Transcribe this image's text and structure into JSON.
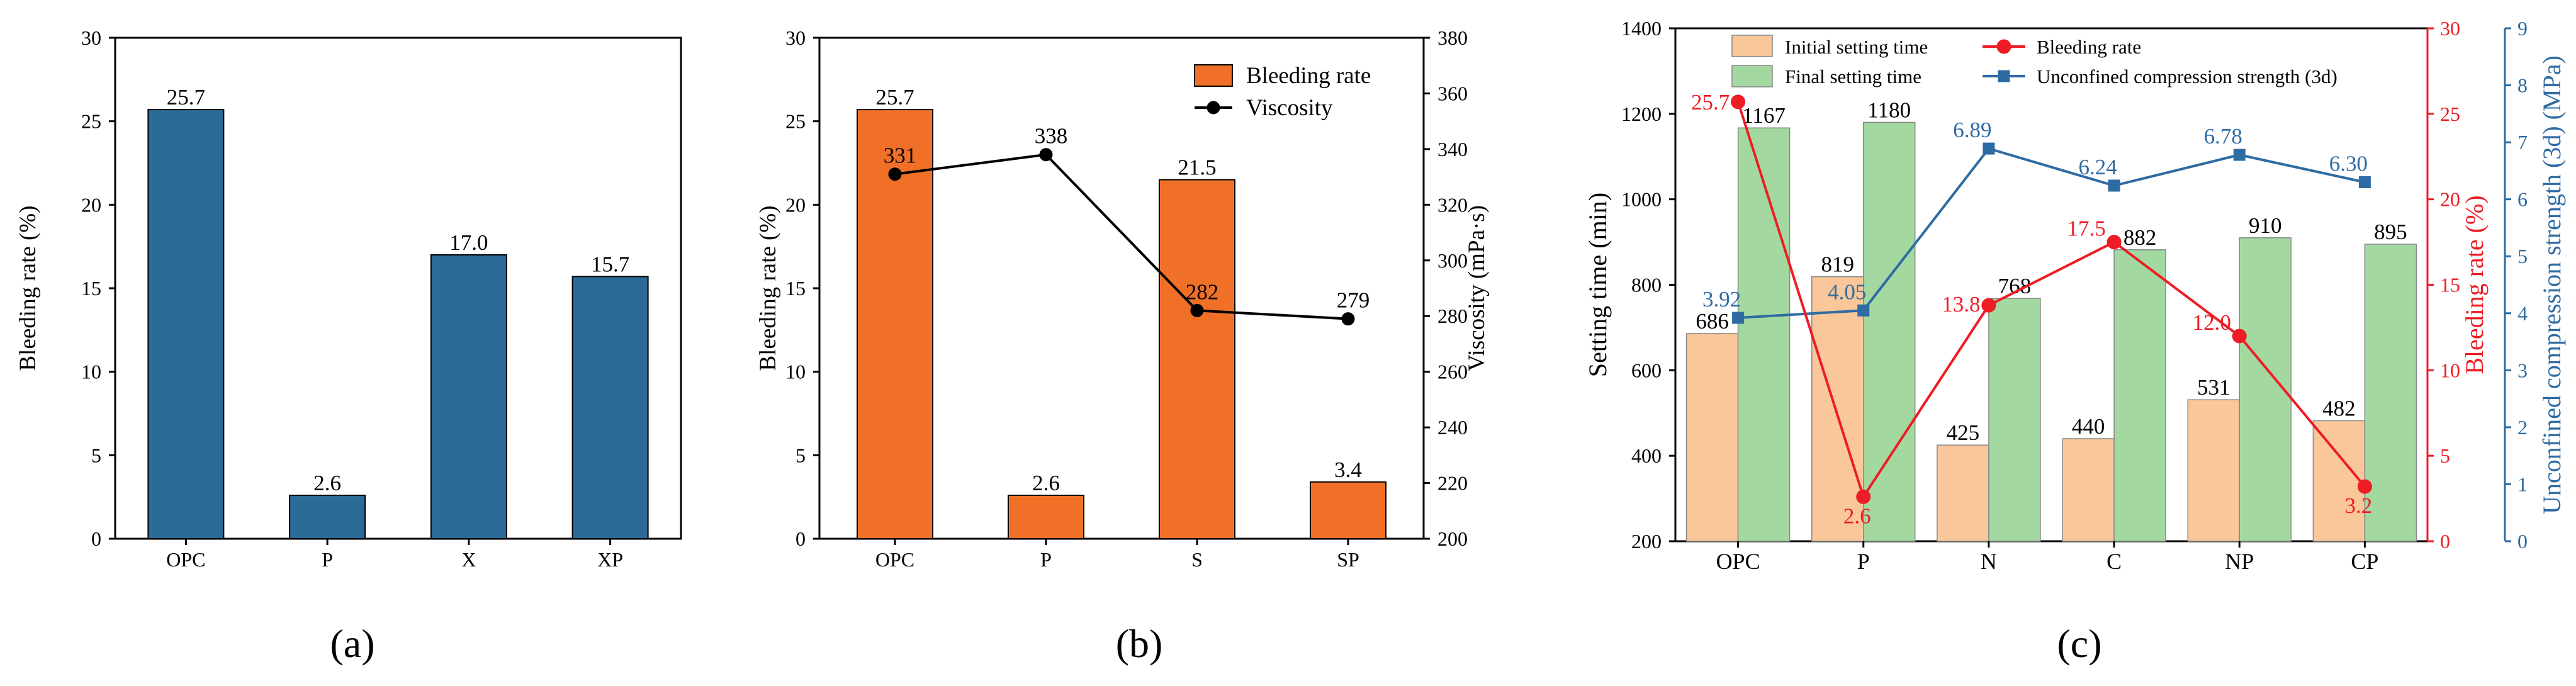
{
  "colors": {
    "blue_bar": "#2c6a98",
    "orange_bar": "#f07028",
    "initial_setting": "#f9c79a",
    "final_setting": "#a3d9a0",
    "bleeding_line": "#ee1c24",
    "strength_line": "#2e6ba3",
    "viscosity_line": "#000000"
  },
  "chart_data": [
    {
      "panel": "(a)",
      "type": "bar",
      "categories": [
        "OPC",
        "P",
        "X",
        "XP"
      ],
      "values": [
        25.7,
        2.6,
        17.0,
        15.7
      ],
      "value_labels": [
        "25.7",
        "2.6",
        "17.0",
        "15.7"
      ],
      "ylabel": "Bleeding rate (%)",
      "xlabel": "",
      "ylim": [
        0,
        30
      ],
      "yticks": [
        0,
        5,
        10,
        15,
        20,
        25,
        30
      ]
    },
    {
      "panel": "(b)",
      "type": "bar+line",
      "categories": [
        "OPC",
        "P",
        "S",
        "SP"
      ],
      "series": [
        {
          "name": "Bleeding rate",
          "type": "bar",
          "axis": "left",
          "values": [
            25.7,
            2.6,
            21.5,
            3.4
          ],
          "value_labels": [
            "25.7",
            "2.6",
            "21.5",
            "3.4"
          ]
        },
        {
          "name": "Viscosity",
          "type": "line",
          "axis": "right",
          "values": [
            331,
            338,
            282,
            279
          ],
          "value_labels": [
            "331",
            "338",
            "282",
            "279"
          ]
        }
      ],
      "ylabel": "Bleeding rate (%)",
      "ylim": [
        0,
        30
      ],
      "yticks": [
        0,
        5,
        10,
        15,
        20,
        25,
        30
      ],
      "y2label": "Viscosity (mPa·s)",
      "y2lim": [
        200,
        380
      ],
      "y2ticks": [
        200,
        220,
        240,
        260,
        280,
        300,
        320,
        340,
        360,
        380
      ],
      "legend": "top-right"
    },
    {
      "panel": "(c)",
      "type": "bar+line",
      "categories": [
        "OPC",
        "P",
        "N",
        "C",
        "NP",
        "CP"
      ],
      "series": [
        {
          "name": "Initial setting time",
          "type": "bar",
          "axis": "left",
          "values": [
            686,
            819,
            425,
            440,
            531,
            482
          ],
          "value_labels": [
            "686",
            "819",
            "425",
            "440",
            "531",
            "482"
          ]
        },
        {
          "name": "Final setting time",
          "type": "bar",
          "axis": "left",
          "values": [
            1167,
            1180,
            768,
            882,
            910,
            895
          ],
          "value_labels": [
            "1167",
            "1180",
            "768",
            "882",
            "910",
            "895"
          ]
        },
        {
          "name": "Bleeding rate",
          "type": "line",
          "axis": "right1",
          "values": [
            25.7,
            2.6,
            13.8,
            17.5,
            12.0,
            3.2
          ],
          "value_labels": [
            "25.7",
            "2.6",
            "13.8",
            "17.5",
            "12.0",
            "3.2"
          ]
        },
        {
          "name": "Unconfined compression strength (3d)",
          "type": "line",
          "axis": "right2",
          "values": [
            3.92,
            4.05,
            6.89,
            6.24,
            6.78,
            6.3
          ],
          "value_labels": [
            "3.92",
            "4.05",
            "6.89",
            "6.24",
            "6.78",
            "6.30"
          ]
        }
      ],
      "ylabel": "Setting time (min)",
      "ylim": [
        200,
        1400
      ],
      "yticks": [
        200,
        400,
        600,
        800,
        1000,
        1200,
        1400
      ],
      "y2label": "Bleeding rate (%)",
      "y2lim": [
        0,
        30
      ],
      "y2ticks": [
        0,
        5,
        10,
        15,
        20,
        25,
        30
      ],
      "y3label": "Unconfined compression strength (3d) (MPa)",
      "y3lim": [
        0,
        9
      ],
      "y3ticks": [
        0,
        1,
        2,
        3,
        4,
        5,
        6,
        7,
        8,
        9
      ],
      "legend": "top"
    }
  ]
}
